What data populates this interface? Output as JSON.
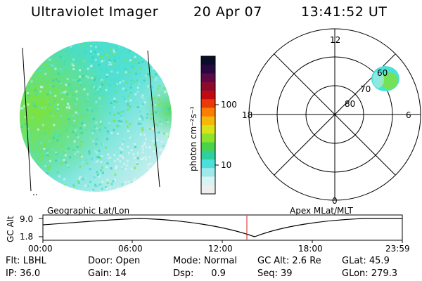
{
  "header": {
    "title": "Ultraviolet Imager",
    "date": "20 Apr 07",
    "time": "13:41:52 UT"
  },
  "colorbar": {
    "label": "photon cm⁻²s⁻¹",
    "ticks": [
      "100",
      "10"
    ],
    "colors": [
      "#0b0b2a",
      "#2a0740",
      "#5a0a45",
      "#8c0a2c",
      "#c00a12",
      "#e93a08",
      "#fb7d05",
      "#f5b80a",
      "#d8e21a",
      "#8ee22a",
      "#4ad24a",
      "#2fd0a0",
      "#4de0d8",
      "#9fe9ea",
      "#d8f3f4",
      "#eeeeee"
    ]
  },
  "polar": {
    "top": "12",
    "bottom": "0",
    "left": "18",
    "right": "6",
    "rings": [
      "60",
      "70",
      "80"
    ]
  },
  "timeline": {
    "ylabel": "GC Alt",
    "left_title": "Geographic Lat/Lon",
    "right_title": "Apex MLat/MLT",
    "y_top": "9.0",
    "y_bottom": "1.8",
    "x_ticks": [
      "00:00",
      "06:00",
      "12:00",
      "18:00",
      "23:59"
    ],
    "marker_color": "#d02020"
  },
  "info": {
    "row1": {
      "flt": "Flt: LBHL",
      "door": "Door: Open",
      "mode": "Mode: Normal",
      "gcalt": "GC Alt: 2.6 Re",
      "glat": "GLat:  45.9"
    },
    "row2": {
      "ip": "IP: 36.0",
      "gain": "Gain: 14",
      "dsp": "Dsp:      0.9",
      "seq": "Seq: 39",
      "glon": "GLon: 279.3"
    }
  }
}
